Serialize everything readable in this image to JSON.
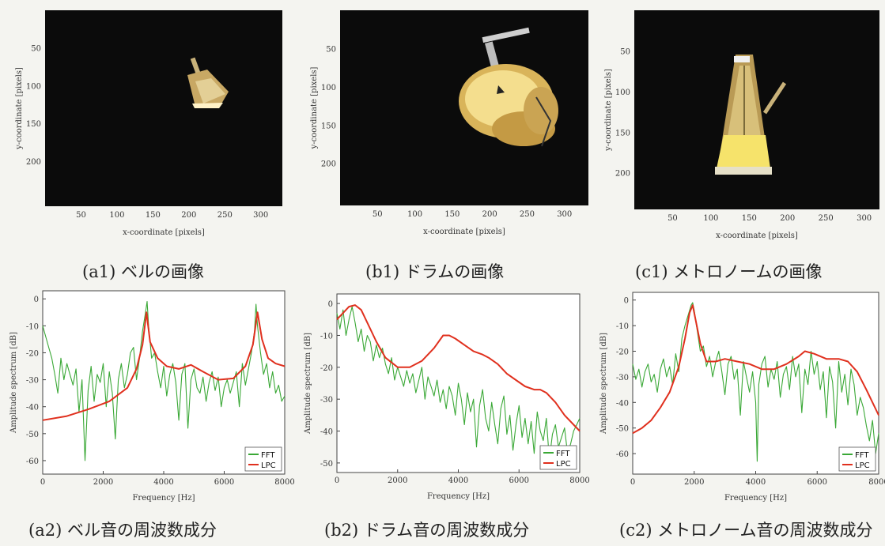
{
  "image_panels": [
    {
      "id": "a1",
      "caption": "(a1) ベルの画像",
      "ylabel": "y-coordinate [pixels]",
      "xlabel": "x-coordinate [pixels]",
      "yticks": [
        "50",
        "100",
        "150",
        "200"
      ],
      "xticks": [
        "50",
        "100",
        "150",
        "200",
        "250",
        "300"
      ],
      "object": "bell-image"
    },
    {
      "id": "b1",
      "caption": "(b1) ドラムの画像",
      "ylabel": "y-coordinate [pixels]",
      "xlabel": "x-coordinate [pixels]",
      "yticks": [
        "50",
        "100",
        "150",
        "200"
      ],
      "xticks": [
        "50",
        "100",
        "150",
        "200",
        "250",
        "300"
      ],
      "object": "drum-image"
    },
    {
      "id": "c1",
      "caption": "(c1) メトロノームの画像",
      "ylabel": "y-coordinate [pixels]",
      "xlabel": "x-coordinate [pixels]",
      "yticks": [
        "50",
        "100",
        "150",
        "200"
      ],
      "xticks": [
        "50",
        "100",
        "150",
        "200",
        "250",
        "300"
      ],
      "object": "metronome-image"
    }
  ],
  "chart_data": [
    {
      "type": "line",
      "id": "a2",
      "caption": "(a2) ベル音の周波数成分",
      "xlabel": "Frequency [Hz]",
      "ylabel": "Amplitude spectrum [dB]",
      "xlim": [
        0,
        8000
      ],
      "ylim": [
        -65,
        3
      ],
      "xticks": [
        0,
        2000,
        4000,
        6000,
        8000
      ],
      "yticks": [
        0,
        -10,
        -20,
        -30,
        -40,
        -50,
        -60
      ],
      "legend": {
        "position": "bottom-right",
        "entries": [
          "FFT",
          "LPC"
        ]
      },
      "series": [
        {
          "name": "LPC",
          "color": "#e0301e",
          "x": [
            0,
            800,
            1500,
            2200,
            2800,
            3100,
            3300,
            3430,
            3550,
            3800,
            4100,
            4500,
            4900,
            5300,
            5800,
            6300,
            6700,
            6950,
            7100,
            7250,
            7450,
            7700,
            8000
          ],
          "y": [
            -45,
            -43.5,
            -41,
            -38,
            -33,
            -26,
            -17,
            -5,
            -16,
            -22,
            -25,
            -26,
            -24.5,
            -27,
            -30,
            -29.5,
            -25,
            -17,
            -5,
            -15,
            -22,
            -24,
            -25
          ]
        },
        {
          "name": "FFT",
          "color": "#3aa836",
          "x": [
            0,
            100,
            200,
            300,
            400,
            500,
            600,
            700,
            800,
            900,
            1000,
            1100,
            1200,
            1300,
            1400,
            1500,
            1600,
            1700,
            1800,
            1900,
            2000,
            2100,
            2200,
            2300,
            2400,
            2500,
            2600,
            2700,
            2800,
            2900,
            3000,
            3100,
            3200,
            3300,
            3400,
            3450,
            3500,
            3600,
            3700,
            3800,
            3900,
            4000,
            4100,
            4200,
            4300,
            4400,
            4500,
            4600,
            4700,
            4800,
            4900,
            5000,
            5100,
            5200,
            5300,
            5400,
            5500,
            5600,
            5700,
            5800,
            5900,
            6000,
            6100,
            6200,
            6300,
            6400,
            6500,
            6600,
            6700,
            6800,
            6900,
            7000,
            7050,
            7100,
            7200,
            7300,
            7400,
            7500,
            7600,
            7700,
            7800,
            7900,
            8000
          ],
          "y": [
            -10,
            -14,
            -18,
            -22,
            -28,
            -35,
            -22,
            -30,
            -24,
            -28,
            -32,
            -26,
            -42,
            -30,
            -60,
            -34,
            -25,
            -38,
            -28,
            -31,
            -24,
            -40,
            -27,
            -35,
            -52,
            -30,
            -24,
            -33,
            -28,
            -20,
            -18,
            -30,
            -22,
            -12,
            -5,
            -1,
            -10,
            -22,
            -20,
            -27,
            -33,
            -25,
            -36,
            -28,
            -24,
            -31,
            -45,
            -28,
            -24,
            -48,
            -30,
            -26,
            -33,
            -35,
            -29,
            -38,
            -31,
            -27,
            -34,
            -29,
            -40,
            -33,
            -30,
            -35,
            -31,
            -27,
            -40,
            -24,
            -32,
            -26,
            -20,
            -12,
            -2,
            -10,
            -20,
            -28,
            -24,
            -33,
            -27,
            -35,
            -32,
            -38,
            -36
          ]
        }
      ]
    },
    {
      "type": "line",
      "id": "b2",
      "caption": "(b2) ドラム音の周波数成分",
      "xlabel": "Frequency [Hz]",
      "ylabel": "Amplitude spectrum [dB]",
      "xlim": [
        0,
        8000
      ],
      "ylim": [
        -53,
        3
      ],
      "xticks": [
        0,
        2000,
        4000,
        6000,
        8000
      ],
      "yticks": [
        0,
        -10,
        -20,
        -30,
        -40,
        -50
      ],
      "legend": {
        "position": "bottom-right",
        "entries": [
          "FFT",
          "LPC"
        ]
      },
      "series": [
        {
          "name": "LPC",
          "color": "#e0301e",
          "x": [
            0,
            200,
            400,
            600,
            800,
            1000,
            1300,
            1600,
            2000,
            2400,
            2800,
            3200,
            3500,
            3700,
            3900,
            4200,
            4500,
            4800,
            5000,
            5300,
            5600,
            5900,
            6200,
            6500,
            6700,
            6900,
            7200,
            7500,
            7800,
            8000
          ],
          "y": [
            -5,
            -3,
            -1,
            -0.5,
            -2,
            -6,
            -12,
            -17,
            -20,
            -20,
            -18,
            -14,
            -10,
            -10,
            -11,
            -13,
            -15,
            -16,
            -17,
            -19,
            -22,
            -24,
            -26,
            -27,
            -27,
            -28,
            -31,
            -35,
            -38,
            -40
          ]
        },
        {
          "name": "FFT",
          "color": "#3aa836",
          "x": [
            0,
            100,
            200,
            300,
            400,
            500,
            600,
            700,
            800,
            900,
            1000,
            1100,
            1200,
            1300,
            1400,
            1500,
            1600,
            1700,
            1800,
            1900,
            2000,
            2100,
            2200,
            2300,
            2400,
            2500,
            2600,
            2700,
            2800,
            2900,
            3000,
            3100,
            3200,
            3300,
            3400,
            3500,
            3600,
            3700,
            3800,
            3900,
            4000,
            4100,
            4200,
            4300,
            4400,
            4500,
            4600,
            4700,
            4800,
            4900,
            5000,
            5100,
            5200,
            5300,
            5400,
            5500,
            5600,
            5700,
            5800,
            5900,
            6000,
            6100,
            6200,
            6300,
            6400,
            6500,
            6600,
            6700,
            6800,
            6900,
            7000,
            7100,
            7200,
            7300,
            7400,
            7500,
            7600,
            7700,
            7800,
            7900,
            8000
          ],
          "y": [
            -3,
            -8,
            -2,
            -10,
            -5,
            -1,
            -6,
            -12,
            -8,
            -15,
            -10,
            -12,
            -18,
            -13,
            -17,
            -14,
            -19,
            -22,
            -17,
            -24,
            -20,
            -23,
            -26,
            -21,
            -25,
            -22,
            -28,
            -24,
            -20,
            -30,
            -23,
            -26,
            -29,
            -24,
            -31,
            -27,
            -33,
            -26,
            -29,
            -35,
            -25,
            -30,
            -38,
            -28,
            -34,
            -30,
            -45,
            -32,
            -27,
            -36,
            -40,
            -31,
            -38,
            -44,
            -33,
            -29,
            -41,
            -35,
            -46,
            -38,
            -32,
            -42,
            -36,
            -44,
            -37,
            -47,
            -34,
            -40,
            -43,
            -36,
            -49,
            -41,
            -38,
            -45,
            -42,
            -39,
            -47,
            -44,
            -40,
            -38,
            -36
          ]
        }
      ]
    },
    {
      "type": "line",
      "id": "c2",
      "caption": "(c2) メトロノーム音の周波数成分",
      "xlabel": "Frequency [Hz]",
      "ylabel": "Amplitude spectrum [dB]",
      "xlim": [
        0,
        8000
      ],
      "ylim": [
        -68,
        3
      ],
      "xticks": [
        0,
        2000,
        4000,
        6000,
        8000
      ],
      "yticks": [
        0,
        -10,
        -20,
        -30,
        -40,
        -50,
        -60
      ],
      "legend": {
        "position": "bottom-right",
        "entries": [
          "FFT",
          "LPC"
        ]
      },
      "series": [
        {
          "name": "LPC",
          "color": "#e0301e",
          "x": [
            0,
            300,
            600,
            900,
            1200,
            1500,
            1700,
            1850,
            1950,
            2050,
            2200,
            2400,
            2700,
            3000,
            3400,
            3800,
            4200,
            4600,
            5000,
            5400,
            5600,
            5900,
            6300,
            6700,
            7000,
            7300,
            7600,
            7800,
            8000
          ],
          "y": [
            -52,
            -50,
            -47,
            -42,
            -36,
            -26,
            -15,
            -5,
            -2,
            -8,
            -17,
            -24,
            -24,
            -23,
            -24,
            -25,
            -27,
            -27,
            -25,
            -22,
            -20,
            -21,
            -23,
            -23,
            -24,
            -28,
            -35,
            -40,
            -45
          ]
        },
        {
          "name": "FFT",
          "color": "#3aa836",
          "x": [
            0,
            100,
            200,
            300,
            400,
            500,
            600,
            700,
            800,
            900,
            1000,
            1100,
            1200,
            1300,
            1400,
            1500,
            1600,
            1700,
            1800,
            1900,
            1950,
            2000,
            2100,
            2200,
            2300,
            2400,
            2500,
            2600,
            2700,
            2800,
            2900,
            3000,
            3100,
            3200,
            3300,
            3400,
            3500,
            3600,
            3700,
            3800,
            3900,
            4000,
            4050,
            4100,
            4200,
            4300,
            4400,
            4500,
            4600,
            4700,
            4800,
            4900,
            5000,
            5100,
            5200,
            5300,
            5400,
            5500,
            5600,
            5700,
            5800,
            5900,
            6000,
            6100,
            6200,
            6300,
            6400,
            6500,
            6600,
            6700,
            6800,
            6900,
            7000,
            7100,
            7200,
            7300,
            7400,
            7500,
            7600,
            7700,
            7800,
            7900,
            8000
          ],
          "y": [
            -25,
            -31,
            -27,
            -34,
            -28,
            -25,
            -32,
            -29,
            -36,
            -27,
            -23,
            -30,
            -26,
            -33,
            -21,
            -28,
            -15,
            -10,
            -6,
            -2,
            -1,
            -4,
            -12,
            -20,
            -18,
            -26,
            -22,
            -30,
            -24,
            -20,
            -28,
            -37,
            -25,
            -22,
            -31,
            -27,
            -45,
            -24,
            -30,
            -36,
            -28,
            -40,
            -63,
            -33,
            -25,
            -22,
            -34,
            -27,
            -31,
            -24,
            -38,
            -29,
            -26,
            -35,
            -22,
            -30,
            -25,
            -44,
            -27,
            -33,
            -20,
            -29,
            -24,
            -35,
            -28,
            -46,
            -26,
            -32,
            -50,
            -24,
            -36,
            -29,
            -41,
            -27,
            -33,
            -45,
            -38,
            -42,
            -49,
            -55,
            -47,
            -60,
            -52
          ]
        }
      ]
    }
  ]
}
